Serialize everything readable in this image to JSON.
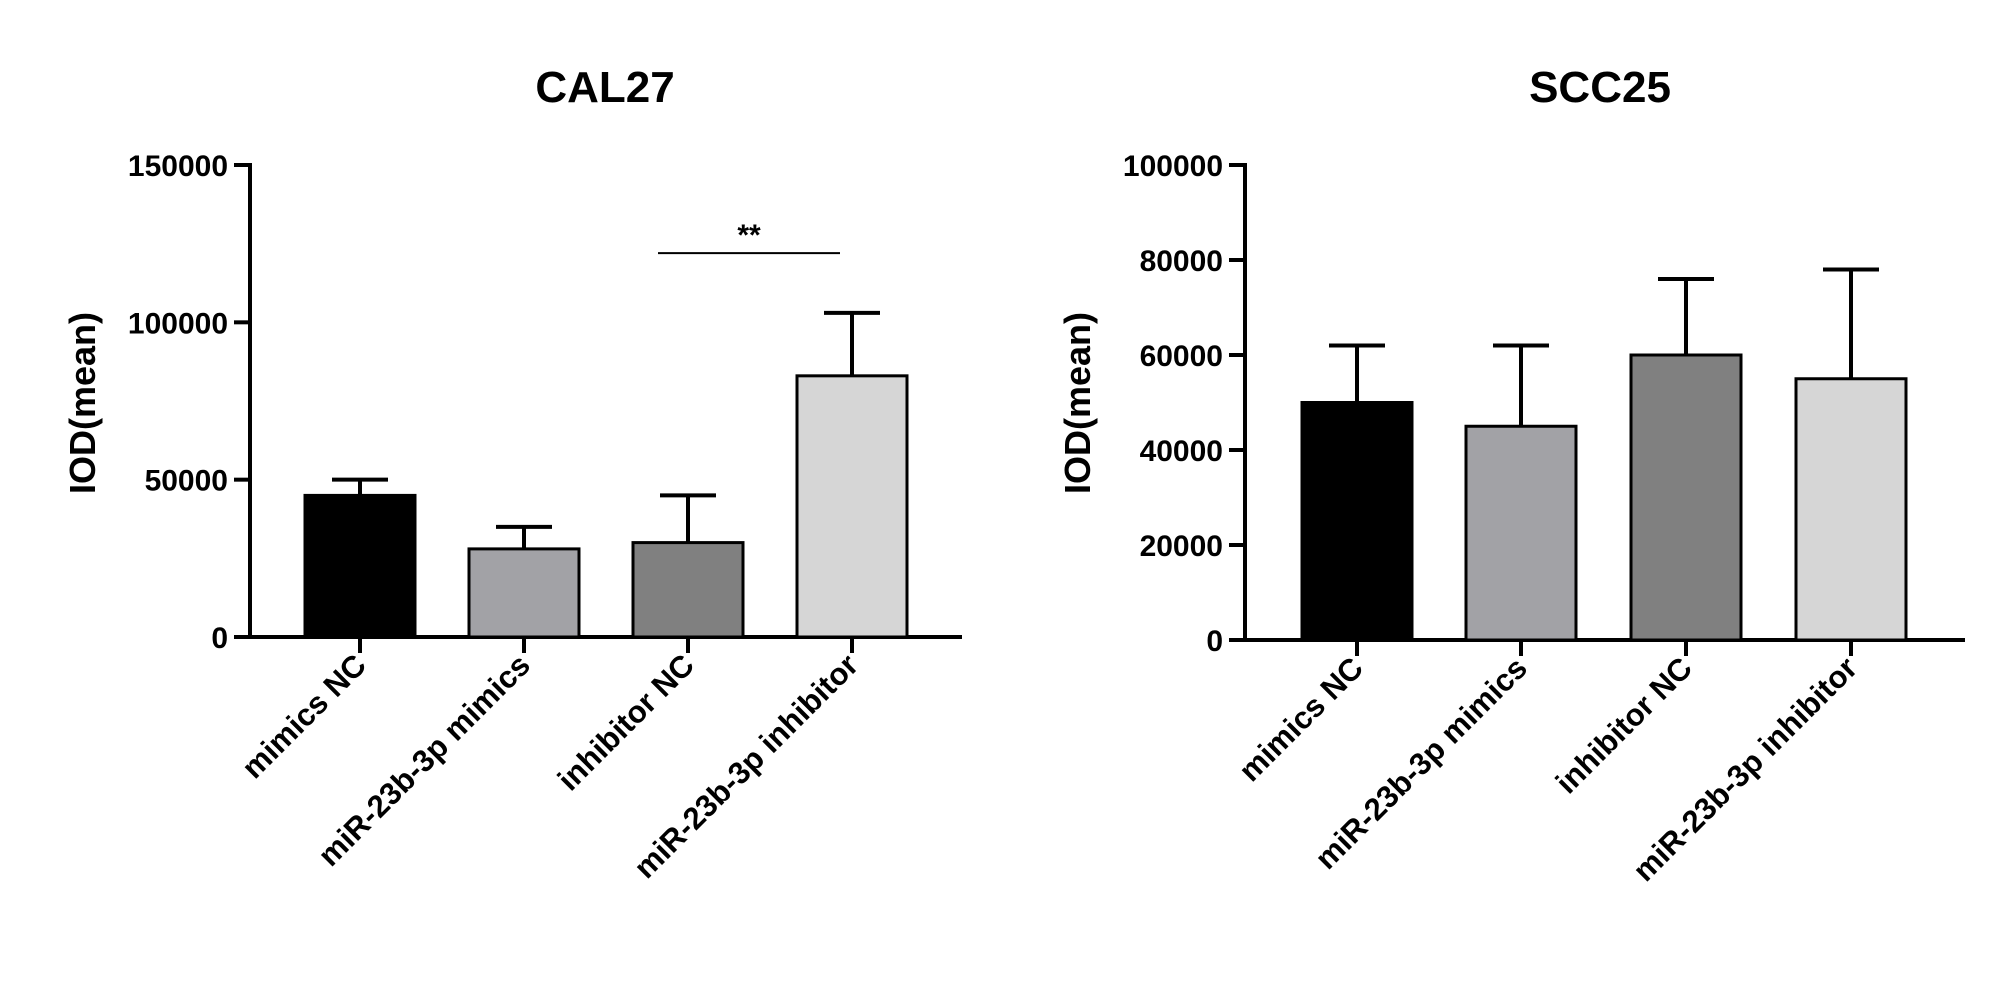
{
  "chart_data": [
    {
      "type": "bar",
      "title": "CAL27",
      "xlabel": "",
      "ylabel": "IOD(mean)",
      "ylim": [
        0,
        150000
      ],
      "yticks": [
        0,
        50000,
        100000,
        150000
      ],
      "yticks_labels": [
        "0",
        "50000",
        "100000",
        "150000"
      ],
      "categories": [
        "mimics NC",
        "miR-23b-3p mimics",
        "inhibitor NC",
        "miR-23b-3p inhibitor"
      ],
      "values": [
        45000,
        28000,
        30000,
        83000
      ],
      "errors": [
        5000,
        7000,
        15000,
        20000
      ],
      "colors": [
        "#000000",
        "#a2a2a6",
        "#808080",
        "#d6d6d6"
      ],
      "significance": [
        {
          "from": 2,
          "to": 3,
          "label": "**",
          "y": 122000
        }
      ]
    },
    {
      "type": "bar",
      "title": "SCC25",
      "xlabel": "",
      "ylabel": "IOD(mean)",
      "ylim": [
        0,
        100000
      ],
      "yticks": [
        0,
        20000,
        40000,
        60000,
        80000,
        100000
      ],
      "yticks_labels": [
        "0",
        "20000",
        "40000",
        "60000",
        "80000",
        "100000"
      ],
      "categories": [
        "mimics NC",
        "miR-23b-3p mimics",
        "inhibitor NC",
        "miR-23b-3p inhibitor"
      ],
      "values": [
        50000,
        45000,
        60000,
        55000
      ],
      "errors": [
        12000,
        17000,
        16000,
        23000
      ],
      "colors": [
        "#000000",
        "#a2a2a6",
        "#808080",
        "#d6d6d6"
      ],
      "significance": []
    }
  ]
}
